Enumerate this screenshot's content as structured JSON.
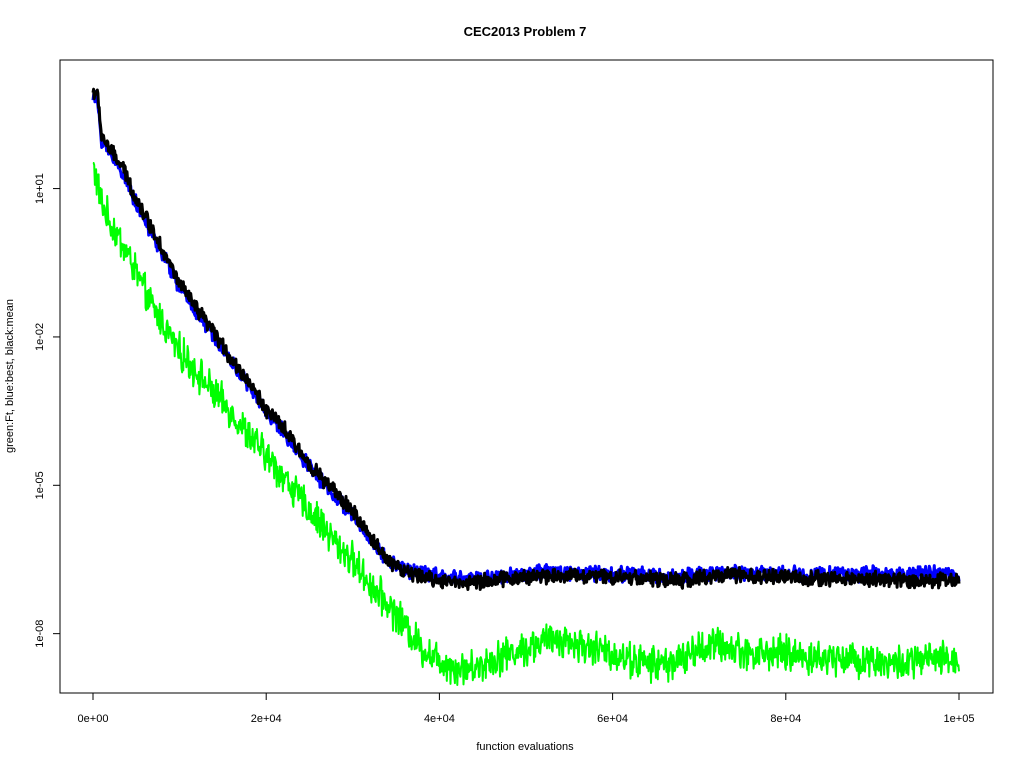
{
  "chart_data": {
    "type": "line",
    "title": "CEC2013 Problem  7",
    "xlabel": "function evaluations",
    "ylabel": "green:Ft, blue:best, black:mean",
    "x_scale": "linear",
    "y_scale": "log10",
    "xlim": [
      0,
      100000
    ],
    "ylim_log10": [
      -9.2,
      3.6
    ],
    "x_ticks": [
      {
        "value": 0,
        "label": "0e+00"
      },
      {
        "value": 20000,
        "label": "2e+04"
      },
      {
        "value": 40000,
        "label": "4e+04"
      },
      {
        "value": 60000,
        "label": "6e+04"
      },
      {
        "value": 80000,
        "label": "8e+04"
      },
      {
        "value": 100000,
        "label": "1e+05"
      }
    ],
    "y_ticks": [
      {
        "value": 10,
        "label": "1e+01"
      },
      {
        "value": 0.01,
        "label": "1e-02"
      },
      {
        "value": 1e-05,
        "label": "1e-05"
      },
      {
        "value": 1e-08,
        "label": "1e-08"
      }
    ],
    "grid": false,
    "legend": "none",
    "series": [
      {
        "color": "#00ff00",
        "x": [
          0,
          1000,
          2000,
          3500,
          5000,
          6500,
          8000,
          10000,
          12000,
          14000,
          16000,
          18000,
          20000,
          22000,
          24000,
          26000,
          28000,
          30000,
          32000,
          34000,
          36000,
          38000,
          40000,
          42000,
          44000,
          46000,
          48000,
          50000,
          52000,
          54000,
          56000,
          58000,
          60000,
          62000,
          64000,
          66000,
          68000,
          70000,
          72000,
          74000,
          76000,
          78000,
          80000,
          82000,
          84000,
          86000,
          88000,
          90000,
          92000,
          94000,
          96000,
          98000,
          100000
        ],
        "y": [
          30.0,
          5.0,
          2.0,
          0.7,
          0.2,
          0.05,
          0.02,
          0.005,
          0.002,
          0.0007,
          0.0003,
          0.0001,
          4e-05,
          1.5e-05,
          5e-06,
          2e-06,
          7e-07,
          3e-07,
          1e-07,
          4e-08,
          1.5e-08,
          5e-09,
          3e-09,
          2e-09,
          2e-09,
          3e-09,
          4e-09,
          5e-09,
          7e-09,
          8e-09,
          6e-09,
          5e-09,
          4e-09,
          3e-09,
          2.5e-09,
          2.5e-09,
          3e-09,
          5e-09,
          6e-09,
          5e-09,
          4e-09,
          4e-09,
          4e-09,
          3.5e-09,
          3e-09,
          3.5e-09,
          3e-09,
          3e-09,
          2.5e-09,
          2.5e-09,
          3e-09,
          3e-09,
          3e-09
        ],
        "noise": 0.28
      },
      {
        "color": "#0000ff",
        "x": [
          0,
          500,
          1000,
          2000,
          3500,
          5000,
          6500,
          8000,
          10000,
          12000,
          14000,
          16000,
          18000,
          20000,
          22000,
          24000,
          26000,
          28000,
          30000,
          32000,
          34000,
          36000,
          38000,
          40000,
          42000,
          44000,
          46000,
          48000,
          50000,
          52000,
          54000,
          56000,
          58000,
          60000,
          62000,
          64000,
          66000,
          68000,
          70000,
          72000,
          74000,
          76000,
          78000,
          80000,
          82000,
          84000,
          86000,
          88000,
          90000,
          92000,
          94000,
          96000,
          98000,
          100000
        ],
        "y": [
          700.0,
          600.0,
          100.0,
          50.0,
          20.0,
          5.0,
          1.5,
          0.5,
          0.1,
          0.03,
          0.01,
          0.003,
          0.001,
          0.0003,
          0.00012,
          4e-05,
          1.5e-05,
          6e-06,
          2.5e-06,
          8e-07,
          3e-07,
          2e-07,
          1.7e-07,
          1.5e-07,
          1.3e-07,
          1.3e-07,
          1.4e-07,
          1.5e-07,
          1.6e-07,
          1.7e-07,
          1.8e-07,
          1.7e-07,
          1.7e-07,
          1.6e-07,
          1.6e-07,
          1.5e-07,
          1.4e-07,
          1.4e-07,
          1.5e-07,
          1.7e-07,
          1.8e-07,
          1.7e-07,
          1.7e-07,
          1.7e-07,
          1.6e-07,
          1.6e-07,
          1.6e-07,
          1.6e-07,
          1.6e-07,
          1.6e-07,
          1.6e-07,
          1.6e-07,
          1.6e-07,
          1.6e-07
        ],
        "noise": 0.12
      },
      {
        "color": "#000000",
        "x": [
          0,
          500,
          1000,
          2000,
          3500,
          5000,
          6500,
          8000,
          10000,
          12000,
          14000,
          16000,
          18000,
          20000,
          22000,
          24000,
          26000,
          28000,
          30000,
          32000,
          34000,
          36000,
          38000,
          40000,
          42000,
          44000,
          46000,
          48000,
          50000,
          52000,
          54000,
          56000,
          58000,
          60000,
          62000,
          64000,
          66000,
          68000,
          70000,
          72000,
          74000,
          76000,
          78000,
          80000,
          82000,
          84000,
          86000,
          88000,
          90000,
          92000,
          94000,
          96000,
          98000,
          100000
        ],
        "y": [
          900.0,
          800.0,
          120.0,
          60.0,
          25.0,
          6.0,
          2.0,
          0.6,
          0.12,
          0.035,
          0.012,
          0.0035,
          0.0012,
          0.00035,
          0.00014,
          4.5e-05,
          1.7e-05,
          7e-06,
          3e-06,
          9e-07,
          3.2e-07,
          1.8e-07,
          1.4e-07,
          1.2e-07,
          1.1e-07,
          1.1e-07,
          1.2e-07,
          1.3e-07,
          1.4e-07,
          1.5e-07,
          1.5e-07,
          1.5e-07,
          1.5e-07,
          1.4e-07,
          1.4e-07,
          1.3e-07,
          1.2e-07,
          1.2e-07,
          1.3e-07,
          1.5e-07,
          1.5e-07,
          1.4e-07,
          1.4e-07,
          1.4e-07,
          1.3e-07,
          1.3e-07,
          1.3e-07,
          1.3e-07,
          1.3e-07,
          1.2e-07,
          1.2e-07,
          1.2e-07,
          1.2e-07,
          1.2e-07
        ],
        "noise": 0.12
      }
    ]
  }
}
